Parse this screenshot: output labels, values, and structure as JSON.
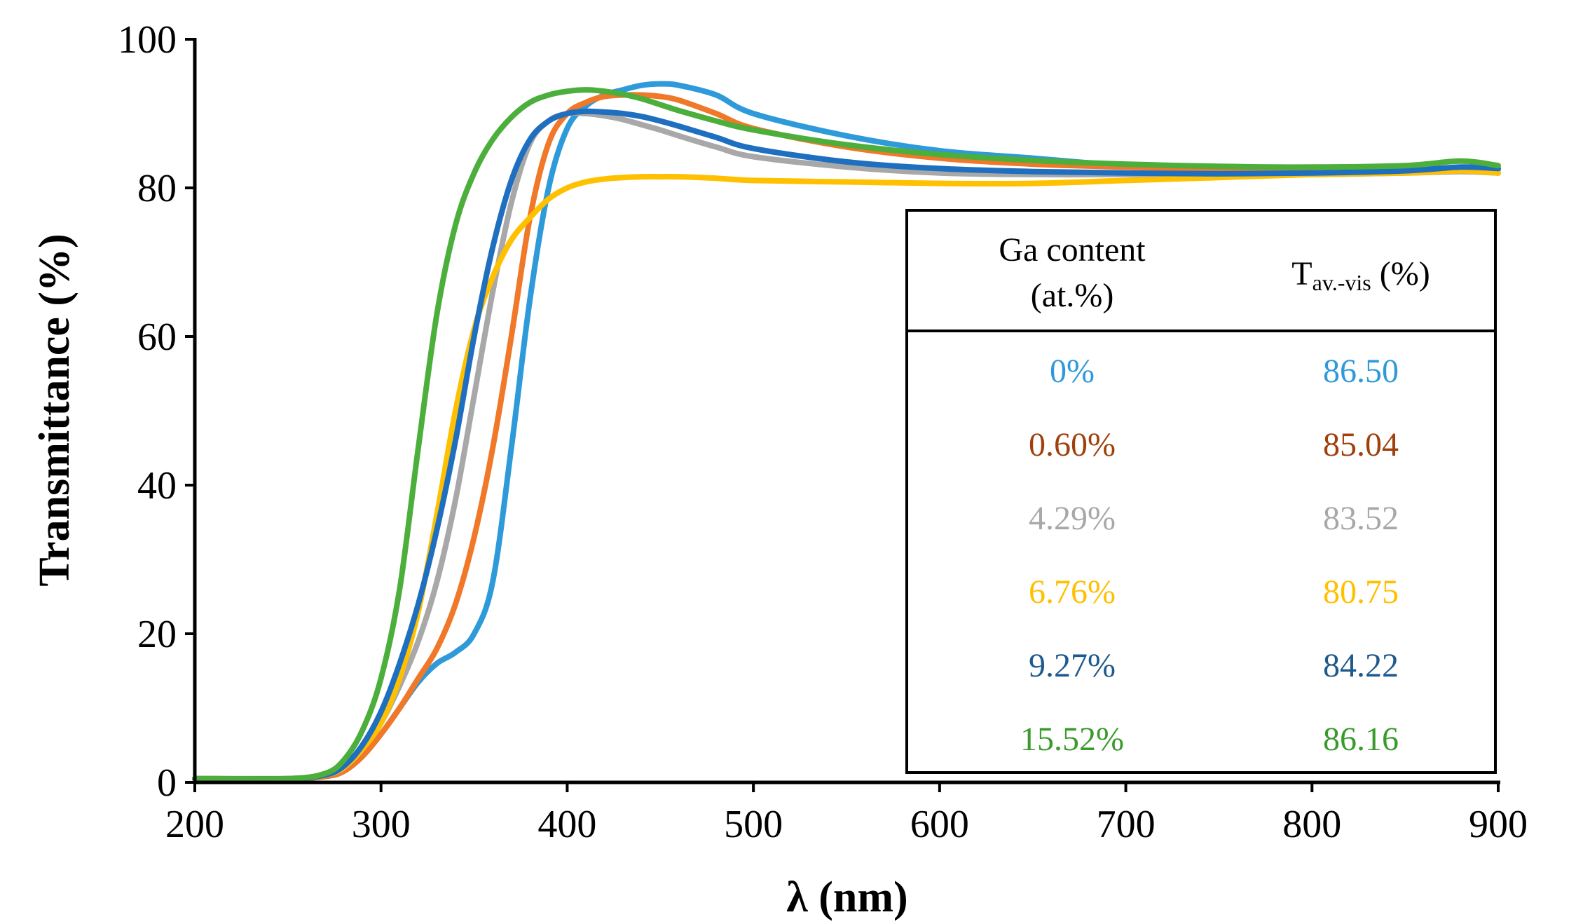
{
  "chart_data": {
    "type": "line",
    "title": "",
    "xlabel": "λ (nm)",
    "ylabel": "Transmittance (%)",
    "xlim": [
      200,
      900
    ],
    "ylim": [
      0,
      100
    ],
    "xticks": [
      "200",
      "300",
      "400",
      "500",
      "600",
      "700",
      "800",
      "900"
    ],
    "yticks": [
      "0",
      "20",
      "40",
      "60",
      "80",
      "100"
    ],
    "x": [
      200,
      250,
      270,
      280,
      290,
      300,
      310,
      320,
      330,
      340,
      350,
      360,
      370,
      380,
      390,
      400,
      410,
      420,
      430,
      440,
      450,
      460,
      480,
      500,
      550,
      600,
      650,
      700,
      750,
      800,
      850,
      880,
      900
    ],
    "series": [
      {
        "name": "0%",
        "color": "#2E9AD9",
        "values": [
          0.5,
          0.5,
          0.8,
          1.5,
          3.5,
          6.5,
          10,
          13.5,
          16,
          17.5,
          20,
          27,
          45,
          65,
          80,
          88,
          91,
          92.5,
          93.2,
          93.8,
          94,
          93.8,
          92.5,
          90,
          87,
          85,
          84,
          83,
          82.5,
          82.3,
          82.5,
          82.7,
          82.5
        ]
      },
      {
        "name": "0.60%",
        "color": "#F07828",
        "values": [
          0.5,
          0.5,
          0.8,
          1.5,
          3.5,
          6.5,
          10,
          14,
          18,
          24,
          33,
          45,
          60,
          76,
          86,
          90,
          91.5,
          92.3,
          92.5,
          92.5,
          92.3,
          91.8,
          90,
          88,
          85.5,
          84,
          83.2,
          82.8,
          82.5,
          82.3,
          82.3,
          82.5,
          82.0
        ]
      },
      {
        "name": "4.29%",
        "color": "#A8A8A8",
        "values": [
          0.5,
          0.5,
          1.0,
          2.0,
          4.5,
          8,
          13,
          19,
          27,
          38,
          52,
          66,
          78,
          86,
          89,
          90,
          90,
          89.7,
          89.2,
          88.5,
          87.8,
          87,
          85.5,
          84.2,
          82.8,
          82,
          81.8,
          81.8,
          81.8,
          81.8,
          82,
          82.2,
          82.0
        ]
      },
      {
        "name": "6.76%",
        "color": "#FFC000",
        "values": [
          0.5,
          0.5,
          1.0,
          2.0,
          4.5,
          8,
          14,
          23,
          36,
          50,
          61,
          68,
          73,
          76,
          78.5,
          80,
          80.8,
          81.2,
          81.4,
          81.5,
          81.5,
          81.5,
          81.3,
          81.0,
          80.8,
          80.6,
          80.6,
          81.0,
          81.4,
          81.8,
          82.0,
          82.3,
          82.0
        ]
      },
      {
        "name": "9.27%",
        "color": "#1F6FC0",
        "values": [
          0.5,
          0.5,
          1.0,
          2.2,
          5,
          9.5,
          16,
          24,
          34,
          46,
          60,
          72,
          81,
          86.5,
          89,
          90,
          90.3,
          90.2,
          90,
          89.6,
          89,
          88.3,
          86.8,
          85.3,
          83.5,
          82.6,
          82.2,
          82,
          81.9,
          82,
          82.3,
          82.8,
          82.6
        ]
      },
      {
        "name": "15.52%",
        "color": "#4CAF3C",
        "values": [
          0.5,
          0.5,
          1.2,
          3,
          7,
          14,
          26,
          45,
          63,
          75,
          82,
          86.5,
          89.5,
          91.5,
          92.5,
          93,
          93.2,
          93,
          92.6,
          92,
          91.2,
          90.4,
          89,
          87.8,
          85.8,
          84.5,
          83.7,
          83.2,
          82.9,
          82.8,
          83.0,
          83.6,
          83.0
        ]
      }
    ],
    "legend_table": {
      "header_col1_line1": "Ga content",
      "header_col1_line2": "(at.%)",
      "header_col2_main": "T",
      "header_col2_sub": "av.-vis",
      "header_col2_suffix": " (%)",
      "rows": [
        {
          "ga": "0%",
          "tav": "86.50",
          "color": "#2E9AD9"
        },
        {
          "ga": "0.60%",
          "tav": "85.04",
          "color": "#A0400C"
        },
        {
          "ga": "4.29%",
          "tav": "83.52",
          "color": "#A8A8A8"
        },
        {
          "ga": "6.76%",
          "tav": "80.75",
          "color": "#FFC000"
        },
        {
          "ga": "9.27%",
          "tav": "84.22",
          "color": "#1F5A8C"
        },
        {
          "ga": "15.52%",
          "tav": "86.16",
          "color": "#3A9A2C"
        }
      ]
    }
  }
}
